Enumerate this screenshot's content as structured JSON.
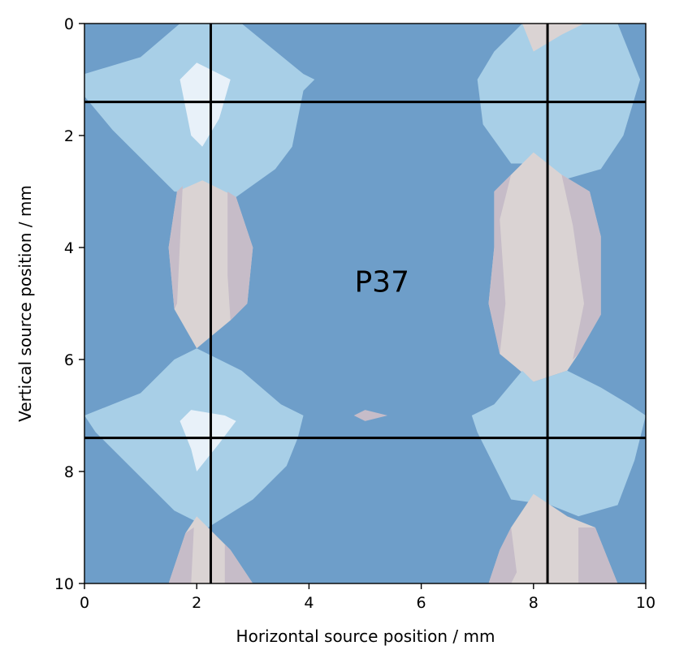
{
  "chart_data": {
    "type": "heatmap",
    "xlabel": "Horizontal source position / mm",
    "ylabel": "Vertical source position / mm",
    "xlim": [
      0,
      10
    ],
    "ylim": [
      10,
      0
    ],
    "xticks": [
      0,
      2,
      4,
      6,
      8,
      10
    ],
    "yticks": [
      0,
      2,
      4,
      6,
      8,
      10
    ],
    "x_tick_labels": [
      "0",
      "2",
      "4",
      "6",
      "8",
      "10"
    ],
    "y_tick_labels": [
      "0",
      "2",
      "4",
      "6",
      "8",
      "10"
    ],
    "y_axis_inverted": true,
    "annotation": {
      "text": "P37",
      "x": 5.3,
      "y": 4.6
    },
    "reference_lines": {
      "vertical": [
        2.25,
        8.25
      ],
      "horizontal": [
        1.4,
        7.4
      ]
    },
    "contour_levels": [
      {
        "level": 0,
        "color": "#6e9ec9"
      },
      {
        "level": 1,
        "color": "#a8cfe7"
      },
      {
        "level": 2,
        "color": "#e8f1f9"
      },
      {
        "level": 3,
        "color": "#dad3d3"
      },
      {
        "level": 4,
        "color": "#c6bcc8"
      }
    ],
    "regions": [
      {
        "level": 1,
        "points": [
          [
            0,
            0.9
          ],
          [
            1,
            0.6
          ],
          [
            1.7,
            0
          ],
          [
            2.8,
            0
          ],
          [
            3.9,
            0.9
          ],
          [
            4.1,
            1
          ],
          [
            3.9,
            1.2
          ],
          [
            3.7,
            2.2
          ],
          [
            3.4,
            2.6
          ],
          [
            2.7,
            3.1
          ],
          [
            1.6,
            3.0
          ],
          [
            1.2,
            2.6
          ],
          [
            0.5,
            1.9
          ],
          [
            0,
            1.3
          ]
        ]
      },
      {
        "level": 2,
        "points": [
          [
            1.7,
            1.0
          ],
          [
            2.0,
            0.7
          ],
          [
            2.6,
            1.0
          ],
          [
            2.4,
            1.7
          ],
          [
            2.1,
            2.2
          ],
          [
            1.9,
            2.0
          ]
        ]
      },
      {
        "level": 3,
        "points": [
          [
            1.5,
            4.0
          ],
          [
            1.65,
            3.0
          ],
          [
            2.1,
            2.8
          ],
          [
            2.7,
            3.1
          ],
          [
            3.0,
            4.0
          ],
          [
            2.9,
            5.0
          ],
          [
            2.6,
            5.3
          ],
          [
            2.0,
            5.8
          ],
          [
            1.6,
            5.1
          ]
        ]
      },
      {
        "level": 4,
        "points": [
          [
            1.5,
            4.0
          ],
          [
            1.65,
            3.0
          ],
          [
            1.75,
            2.9
          ],
          [
            1.65,
            5.0
          ],
          [
            1.6,
            5.1
          ]
        ]
      },
      {
        "level": 4,
        "points": [
          [
            2.55,
            3.0
          ],
          [
            2.7,
            3.1
          ],
          [
            3.0,
            4.0
          ],
          [
            2.9,
            5.0
          ],
          [
            2.6,
            5.3
          ],
          [
            2.55,
            4.5
          ]
        ]
      },
      {
        "level": 1,
        "points": [
          [
            0,
            7.0
          ],
          [
            1.0,
            6.6
          ],
          [
            1.6,
            6.0
          ],
          [
            2.0,
            5.8
          ],
          [
            2.8,
            6.2
          ],
          [
            3.5,
            6.8
          ],
          [
            3.9,
            7.0
          ],
          [
            3.8,
            7.4
          ],
          [
            3.6,
            7.9
          ],
          [
            3.0,
            8.5
          ],
          [
            2.2,
            9.0
          ],
          [
            1.6,
            8.7
          ],
          [
            1.0,
            8.1
          ],
          [
            0.2,
            7.3
          ]
        ]
      },
      {
        "level": 2,
        "points": [
          [
            1.7,
            7.1
          ],
          [
            1.9,
            6.9
          ],
          [
            2.5,
            7.0
          ],
          [
            2.7,
            7.1
          ],
          [
            2.4,
            7.5
          ],
          [
            2.0,
            8.0
          ],
          [
            1.9,
            7.6
          ]
        ]
      },
      {
        "level": 3,
        "points": [
          [
            1.5,
            10
          ],
          [
            1.8,
            9.1
          ],
          [
            2.0,
            8.8
          ],
          [
            2.2,
            9.0
          ],
          [
            2.6,
            9.4
          ],
          [
            3.0,
            10
          ]
        ]
      },
      {
        "level": 4,
        "points": [
          [
            1.5,
            10
          ],
          [
            1.8,
            9.1
          ],
          [
            1.95,
            9.0
          ],
          [
            1.9,
            10
          ]
        ]
      },
      {
        "level": 4,
        "points": [
          [
            2.5,
            10
          ],
          [
            2.5,
            9.3
          ],
          [
            2.6,
            9.4
          ],
          [
            3.0,
            10
          ]
        ]
      },
      {
        "level": 1,
        "points": [
          [
            7.0,
            1.0
          ],
          [
            7.3,
            0.5
          ],
          [
            7.8,
            0
          ],
          [
            9.5,
            0
          ],
          [
            9.9,
            1.0
          ],
          [
            9.6,
            2.0
          ],
          [
            9.2,
            2.6
          ],
          [
            8.5,
            2.8
          ],
          [
            8.0,
            2.5
          ],
          [
            7.6,
            2.5
          ],
          [
            7.1,
            1.8
          ]
        ]
      },
      {
        "level": 3,
        "points": [
          [
            7.8,
            0
          ],
          [
            8.9,
            0
          ],
          [
            8.5,
            0.2
          ],
          [
            8.0,
            0.5
          ]
        ]
      },
      {
        "level": 3,
        "points": [
          [
            7.3,
            4.0
          ],
          [
            7.3,
            3.0
          ],
          [
            8.0,
            2.3
          ],
          [
            8.5,
            2.7
          ],
          [
            9.0,
            3.0
          ],
          [
            9.2,
            3.8
          ],
          [
            9.2,
            5.2
          ],
          [
            8.8,
            5.9
          ],
          [
            8.6,
            6.2
          ],
          [
            8.0,
            6.4
          ],
          [
            7.4,
            5.9
          ],
          [
            7.2,
            5.0
          ]
        ]
      },
      {
        "level": 4,
        "points": [
          [
            7.3,
            4.0
          ],
          [
            7.3,
            3.0
          ],
          [
            7.6,
            2.7
          ],
          [
            7.4,
            3.5
          ],
          [
            7.5,
            5.0
          ],
          [
            7.4,
            5.9
          ],
          [
            7.2,
            5.0
          ]
        ]
      },
      {
        "level": 4,
        "points": [
          [
            8.5,
            2.7
          ],
          [
            9.0,
            3.0
          ],
          [
            9.2,
            3.8
          ],
          [
            9.2,
            5.2
          ],
          [
            8.8,
            5.9
          ],
          [
            8.7,
            6.0
          ],
          [
            8.9,
            5.0
          ],
          [
            8.7,
            3.6
          ]
        ]
      },
      {
        "level": 1,
        "points": [
          [
            6.9,
            7.0
          ],
          [
            7.3,
            6.8
          ],
          [
            7.8,
            6.2
          ],
          [
            8.0,
            6.4
          ],
          [
            8.6,
            6.2
          ],
          [
            9.2,
            6.5
          ],
          [
            9.7,
            6.8
          ],
          [
            10,
            7.0
          ],
          [
            9.8,
            7.8
          ],
          [
            9.5,
            8.6
          ],
          [
            8.8,
            8.8
          ],
          [
            8.3,
            8.6
          ],
          [
            7.6,
            8.5
          ],
          [
            7.3,
            7.9
          ],
          [
            7.0,
            7.3
          ]
        ]
      },
      {
        "level": 3,
        "points": [
          [
            7.2,
            10
          ],
          [
            7.4,
            9.4
          ],
          [
            7.6,
            9.0
          ],
          [
            8.0,
            8.4
          ],
          [
            8.6,
            8.8
          ],
          [
            9.1,
            9.0
          ],
          [
            9.5,
            10
          ]
        ]
      },
      {
        "level": 4,
        "points": [
          [
            7.2,
            10
          ],
          [
            7.4,
            9.4
          ],
          [
            7.6,
            9.0
          ],
          [
            7.7,
            9.8
          ],
          [
            7.6,
            10
          ]
        ]
      },
      {
        "level": 4,
        "points": [
          [
            8.8,
            9.0
          ],
          [
            9.1,
            9.0
          ],
          [
            9.5,
            10
          ],
          [
            8.8,
            10
          ]
        ]
      },
      {
        "level": 4,
        "points": [
          [
            4.8,
            7.0
          ],
          [
            5.0,
            6.9
          ],
          [
            5.4,
            7.0
          ],
          [
            5.0,
            7.1
          ]
        ]
      }
    ]
  }
}
